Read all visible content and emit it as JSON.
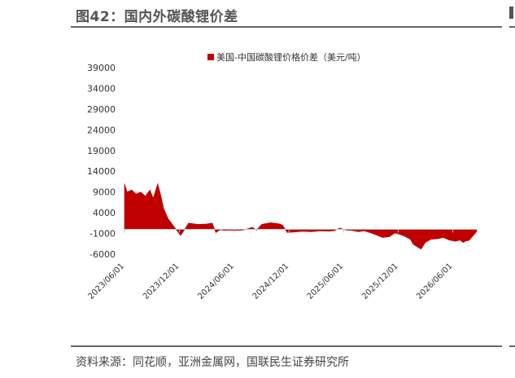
{
  "figure": {
    "title": "图42：国内外碳酸锂价差",
    "source": "资料来源：同花顺，亚洲金属网，国联民生证券研究所"
  },
  "chart_data": {
    "type": "area",
    "title": "",
    "xlabel": "",
    "ylabel": "",
    "ylim": [
      -6000,
      39000
    ],
    "yticks": [
      39000,
      34000,
      29000,
      24000,
      19000,
      14000,
      9000,
      4000,
      -1000,
      -6000
    ],
    "xlim": [
      "2023-06-01",
      "2026-08-20"
    ],
    "xticks": [
      "2023/06/01",
      "2023/12/01",
      "2024/06/01",
      "2024/12/01",
      "2025/06/01",
      "2025/12/01",
      "2026/06/01"
    ],
    "legend": {
      "position": "top",
      "entries": [
        "美国-中国碳酸锂价格价差（美元/吨）"
      ]
    },
    "grid": false,
    "colors": {
      "series": "#c00000",
      "axis": "#bfbfbf"
    },
    "series": [
      {
        "name": "美国-中国碳酸锂价格价差（美元/吨）",
        "x": [
          "2023-06-01",
          "2023-06-10",
          "2023-06-25",
          "2023-07-10",
          "2023-07-25",
          "2023-08-10",
          "2023-08-25",
          "2023-09-05",
          "2023-09-20",
          "2023-10-01",
          "2023-10-10",
          "2023-10-25",
          "2023-11-10",
          "2023-11-25",
          "2023-12-05",
          "2023-12-15",
          "2024-01-01",
          "2024-02-01",
          "2024-03-01",
          "2024-03-20",
          "2024-04-01",
          "2024-04-15",
          "2024-05-01",
          "2024-05-15",
          "2024-06-01",
          "2024-07-01",
          "2024-08-01",
          "2024-08-15",
          "2024-09-01",
          "2024-10-01",
          "2024-11-01",
          "2024-11-10",
          "2024-11-25",
          "2024-12-15",
          "2025-01-15",
          "2025-02-15",
          "2025-03-15",
          "2025-04-15",
          "2025-05-01",
          "2025-05-20",
          "2025-06-10",
          "2025-07-01",
          "2025-07-20",
          "2025-08-10",
          "2025-09-01",
          "2025-09-20",
          "2025-10-10",
          "2025-11-01",
          "2025-11-20",
          "2025-12-05",
          "2025-12-20",
          "2026-01-10",
          "2026-01-20",
          "2026-02-01",
          "2026-02-15",
          "2026-03-01",
          "2026-03-20",
          "2026-04-10",
          "2026-05-01",
          "2026-05-20",
          "2026-06-10",
          "2026-06-25",
          "2026-07-05",
          "2026-07-15",
          "2026-07-25",
          "2026-08-05",
          "2026-08-20"
        ],
        "values": [
          11000,
          9000,
          9500,
          8500,
          9000,
          8000,
          9500,
          7500,
          11000,
          8000,
          5000,
          2500,
          1000,
          -500,
          -1500,
          -500,
          1500,
          1200,
          1300,
          1500,
          -800,
          -100,
          -300,
          -200,
          -300,
          -200,
          500,
          -200,
          1200,
          1600,
          1300,
          1000,
          -800,
          -700,
          -500,
          -600,
          -400,
          -450,
          -350,
          300,
          -200,
          -300,
          -600,
          -400,
          -900,
          -1400,
          -2000,
          -1800,
          -900,
          -1200,
          -1600,
          -2400,
          -3600,
          -4200,
          -4800,
          -3200,
          -2400,
          -2300,
          -2000,
          -2600,
          -2900,
          -2600,
          -3200,
          -2800,
          -2700,
          -1800,
          -500
        ]
      }
    ]
  }
}
